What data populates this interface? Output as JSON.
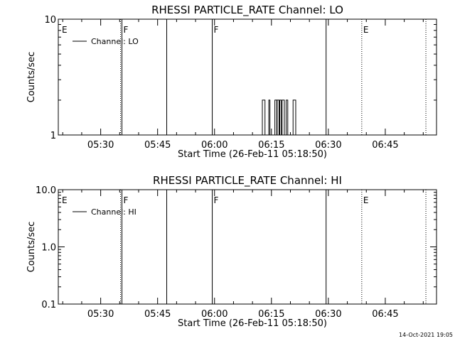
{
  "chart_data": [
    {
      "type": "line",
      "title": "RHESSI PARTICLE_RATE Channel: LO",
      "xlabel": "Start Time (26-Feb-11 05:18:50)",
      "ylabel": "Counts/sec",
      "y_scale": "log",
      "ylim": [
        1,
        10
      ],
      "xlim_minutes_after_0500": [
        18.83,
        83.0
      ],
      "y_ticks": [
        {
          "value": 1,
          "label": "1"
        },
        {
          "value": 10,
          "label": "10"
        }
      ],
      "x_ticks": [
        {
          "value": 30,
          "label": "05:30"
        },
        {
          "value": 45,
          "label": "05:45"
        },
        {
          "value": 60,
          "label": "06:00"
        },
        {
          "value": 75,
          "label": "06:15"
        },
        {
          "value": 90,
          "label": "06:30"
        },
        {
          "value": 105,
          "label": "06:45"
        }
      ],
      "legend": {
        "placement": "top-left",
        "label": "Channel: LO"
      },
      "markers": [
        {
          "t": 19.4,
          "label": "E",
          "style": "none"
        },
        {
          "t": 35.6,
          "label": "F",
          "style": "solid-dotted"
        },
        {
          "t": 47.4,
          "label": "",
          "style": "solid"
        },
        {
          "t": 59.4,
          "label": "F",
          "style": "solid"
        },
        {
          "t": 89.4,
          "label": "",
          "style": "solid"
        },
        {
          "t": 98.8,
          "label": "E",
          "style": "dotted"
        },
        {
          "t": 115.7,
          "label": "",
          "style": "dotted"
        }
      ],
      "series": [
        {
          "name": "Channel: LO",
          "spikes": [
            {
              "t0": 72.6,
              "t1": 73.3,
              "y": 2
            },
            {
              "t0": 74.3,
              "t1": 74.6,
              "y": 2
            },
            {
              "t0": 75.9,
              "t1": 76.4,
              "y": 2
            },
            {
              "t0": 76.5,
              "t1": 77.0,
              "y": 2
            },
            {
              "t0": 77.2,
              "t1": 77.6,
              "y": 2
            },
            {
              "t0": 77.8,
              "t1": 78.4,
              "y": 2
            },
            {
              "t0": 78.9,
              "t1": 79.3,
              "y": 2
            },
            {
              "t0": 80.7,
              "t1": 81.4,
              "y": 2
            }
          ]
        }
      ]
    },
    {
      "type": "line",
      "title": "RHESSI PARTICLE_RATE Channel: HI",
      "xlabel": "Start Time (26-Feb-11 05:18:50)",
      "ylabel": "Counts/sec",
      "y_scale": "log",
      "ylim": [
        0.1,
        10
      ],
      "xlim_minutes_after_0500": [
        18.83,
        83.0
      ],
      "y_ticks": [
        {
          "value": 0.1,
          "label": "0.1"
        },
        {
          "value": 1,
          "label": "1.0"
        },
        {
          "value": 10,
          "label": "10.0"
        }
      ],
      "x_ticks": [
        {
          "value": 30,
          "label": "05:30"
        },
        {
          "value": 45,
          "label": "05:45"
        },
        {
          "value": 60,
          "label": "06:00"
        },
        {
          "value": 75,
          "label": "06:15"
        },
        {
          "value": 90,
          "label": "06:30"
        },
        {
          "value": 105,
          "label": "06:45"
        }
      ],
      "legend": {
        "placement": "top-left",
        "label": "Channel: HI"
      },
      "markers": [
        {
          "t": 19.4,
          "label": "E",
          "style": "none"
        },
        {
          "t": 35.6,
          "label": "F",
          "style": "solid-dotted"
        },
        {
          "t": 47.4,
          "label": "",
          "style": "solid"
        },
        {
          "t": 59.4,
          "label": "F",
          "style": "solid"
        },
        {
          "t": 89.4,
          "label": "",
          "style": "solid"
        },
        {
          "t": 98.8,
          "label": "E",
          "style": "dotted"
        },
        {
          "t": 115.7,
          "label": "",
          "style": "dotted"
        }
      ],
      "series": [
        {
          "name": "Channel: HI",
          "spikes": []
        }
      ]
    }
  ],
  "footer": {
    "timestamp": "14-Oct-2021 19:05"
  }
}
